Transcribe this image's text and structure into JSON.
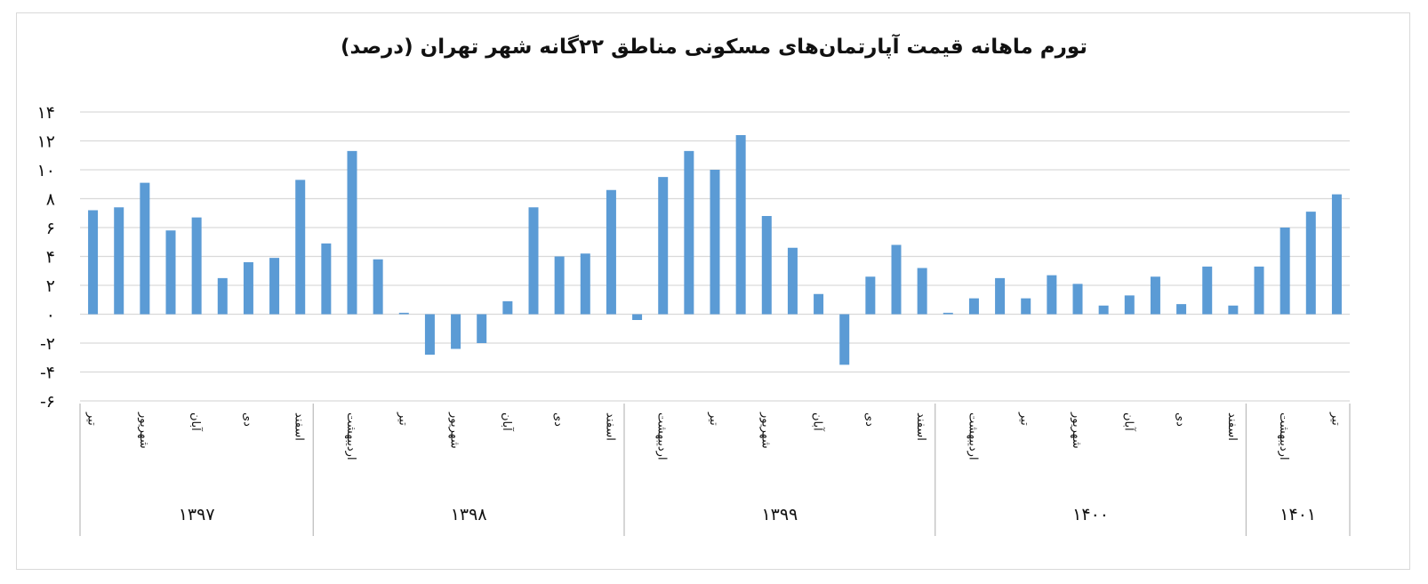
{
  "chart_data": {
    "type": "bar",
    "title": "تورم ماهانه قیمت آپارتمان‌های مسکونی مناطق ۲۲گانه شهر تهران (درصد)",
    "xlabel": "",
    "ylabel": "",
    "ylim": [
      -6,
      14
    ],
    "yticks": [
      -6,
      -4,
      -2,
      0,
      2,
      4,
      6,
      8,
      10,
      12,
      14
    ],
    "ytick_labels": [
      "-۶",
      "-۴",
      "-۲",
      "۰",
      "۲",
      "۴",
      "۶",
      "۸",
      "۱۰",
      "۱۲",
      "۱۴"
    ],
    "grid": true,
    "legend": "none",
    "bar_color": "#5b9bd5",
    "categories": [
      "تیر",
      "",
      "شهریور",
      "",
      "آبان",
      "",
      "دی",
      "",
      "اسفند",
      "",
      "اردیبهشت",
      "",
      "تیر",
      "",
      "شهریور",
      "",
      "آبان",
      "",
      "دی",
      "",
      "اسفند",
      "",
      "اردیبهشت",
      "",
      "تیر",
      "",
      "شهریور",
      "",
      "آبان",
      "",
      "دی",
      "",
      "اسفند",
      "",
      "اردیبهشت",
      "",
      "تیر",
      "",
      "شهریور",
      "",
      "آبان",
      "",
      "دی",
      "",
      "اسفند",
      "",
      "اردیبهشت",
      "",
      "تیر"
    ],
    "values": [
      7.2,
      7.4,
      9.1,
      5.8,
      6.7,
      2.5,
      3.6,
      3.9,
      9.3,
      4.9,
      11.3,
      3.8,
      0.1,
      -2.8,
      -2.4,
      -2.0,
      0.9,
      7.4,
      4.0,
      4.2,
      8.6,
      -0.4,
      9.5,
      11.3,
      10.0,
      12.4,
      6.8,
      4.6,
      1.4,
      -3.5,
      2.6,
      4.8,
      3.2,
      0.1,
      1.1,
      2.5,
      1.1,
      2.7,
      2.1,
      0.6,
      1.3,
      2.6,
      0.7,
      3.3,
      0.6,
      3.3,
      6.0,
      7.1,
      8.3
    ],
    "years": [
      {
        "label": "۱۳۹۷",
        "count": 9
      },
      {
        "label": "۱۳۹۸",
        "count": 12
      },
      {
        "label": "۱۳۹۹",
        "count": 12
      },
      {
        "label": "۱۴۰۰",
        "count": 12
      },
      {
        "label": "۱۴۰۱",
        "count": 4
      }
    ]
  }
}
